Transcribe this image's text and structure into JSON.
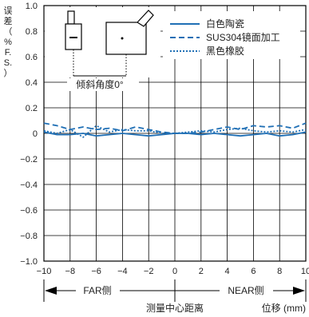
{
  "chart_data": {
    "type": "line",
    "ylabel_chars": [
      "误",
      "差",
      "（",
      "%",
      "F.",
      "S.",
      "）"
    ],
    "xlabel": "测量中心距离",
    "xunit": "位移 (mm)",
    "xlim": [
      -10,
      10
    ],
    "ylim": [
      -1.0,
      1.0
    ],
    "x_ticks": [
      "−10",
      "−8",
      "−6",
      "−4",
      "−2",
      "0",
      "2",
      "4",
      "6",
      "8",
      "10"
    ],
    "y_ticks": [
      "1.0",
      "0.8",
      "0.6",
      "0.4",
      "0.2",
      "0",
      "−0.2",
      "−0.4",
      "−0.6",
      "−0.8",
      "−1.0"
    ],
    "grid": true,
    "legend_position": "top-right",
    "series": [
      {
        "name": "白色陶瓷",
        "style": "solid",
        "color": "#1f6fb5",
        "x": [
          -10,
          -9,
          -8,
          -7,
          -6,
          -5,
          -4,
          -3,
          -2,
          -1,
          0,
          1,
          2,
          3,
          4,
          5,
          6,
          7,
          8,
          9,
          10
        ],
        "y": [
          0.01,
          -0.01,
          -0.01,
          0.0,
          -0.02,
          -0.01,
          0.0,
          -0.01,
          -0.02,
          -0.01,
          0.0,
          0.0,
          -0.01,
          0.0,
          -0.01,
          -0.02,
          -0.01,
          0.0,
          -0.02,
          -0.01,
          0.01
        ]
      },
      {
        "name": "SUS304镜面加工",
        "style": "dashed",
        "color": "#1f6fb5",
        "x": [
          -10,
          -9,
          -8,
          -7,
          -6,
          -5,
          -4,
          -3,
          -2,
          -1,
          0,
          1,
          2,
          3,
          4,
          5,
          6,
          7,
          8,
          9,
          10
        ],
        "y": [
          0.08,
          0.06,
          0.03,
          0.05,
          0.03,
          0.04,
          0.02,
          0.05,
          0.03,
          0.01,
          0.0,
          0.0,
          0.01,
          0.03,
          0.05,
          0.03,
          0.06,
          0.05,
          0.06,
          0.04,
          0.08
        ]
      },
      {
        "name": "黑色橡胶",
        "style": "dotted",
        "color": "#1f6fb5",
        "x": [
          -10,
          -9,
          -8,
          -7,
          -6,
          -5,
          -4,
          -3,
          -2,
          -1,
          0,
          1,
          2,
          3,
          4,
          5,
          6,
          7,
          8,
          9,
          10
        ],
        "y": [
          0.02,
          0.0,
          0.03,
          -0.03,
          0.06,
          0.01,
          0.03,
          0.02,
          0.02,
          0.0,
          0.0,
          0.01,
          0.02,
          0.01,
          0.03,
          0.04,
          0.02,
          0.01,
          0.02,
          0.01,
          0.03
        ]
      }
    ],
    "inset_label": "倾斜角度0°",
    "direction_labels": {
      "left": "FAR侧",
      "right": "NEAR侧"
    }
  }
}
